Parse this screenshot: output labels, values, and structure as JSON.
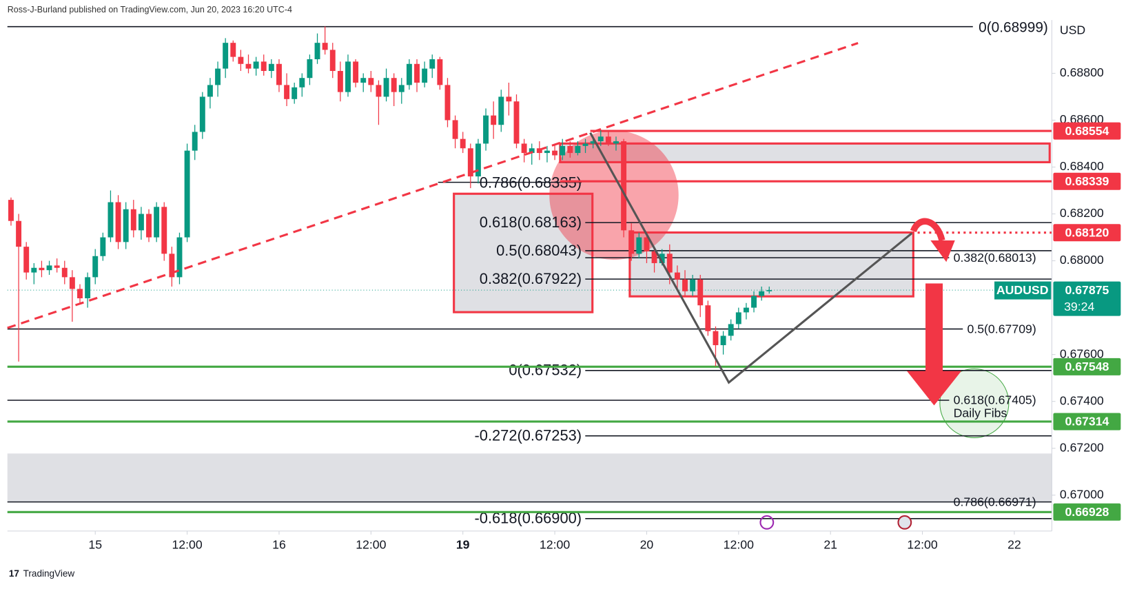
{
  "header": "Ross-J-Burland published on TradingView.com, Jun 20, 2023 16:20 UTC-4",
  "footer": "TradingView",
  "chart_data": {
    "type": "candlestick",
    "symbol": "AUDUSD",
    "currency": "USD",
    "countdown": "39:24",
    "up_color": "#089981",
    "down_color": "#f23645",
    "ylim": [
      0.66847,
      0.69027
    ],
    "xlim": [
      -0.47,
      135.9
    ],
    "yticks": [
      {
        "value": 0.688,
        "label": "0.68800"
      },
      {
        "value": 0.686,
        "label": "0.68600"
      },
      {
        "value": 0.684,
        "label": "0.68400"
      },
      {
        "value": 0.682,
        "label": "0.68200"
      },
      {
        "value": 0.68,
        "label": "0.68000"
      },
      {
        "value": 0.676,
        "label": "0.67600"
      },
      {
        "value": 0.674,
        "label": "0.67400"
      },
      {
        "value": 0.672,
        "label": "0.67200"
      },
      {
        "value": 0.67,
        "label": "0.67000"
      }
    ],
    "xticks": [
      {
        "value": 11,
        "label": "15"
      },
      {
        "value": 23,
        "label": "12:00"
      },
      {
        "value": 35,
        "label": "16"
      },
      {
        "value": 47,
        "label": "12:00"
      },
      {
        "value": 59,
        "label": "19"
      },
      {
        "value": 71,
        "label": "12:00"
      },
      {
        "value": 83,
        "label": "20"
      },
      {
        "value": 95,
        "label": "12:00"
      },
      {
        "value": 107,
        "label": "21"
      },
      {
        "value": 119,
        "label": "12:00"
      },
      {
        "value": 131,
        "label": "22"
      }
    ],
    "candles": [
      [
        0.6826,
        0.6827,
        0.6815,
        0.6817
      ],
      [
        0.6817,
        0.682,
        0.6757,
        0.6806
      ],
      [
        0.6806,
        0.6808,
        0.6792,
        0.6795
      ],
      [
        0.6795,
        0.6799,
        0.679,
        0.6797
      ],
      [
        0.6797,
        0.68,
        0.6793,
        0.6796
      ],
      [
        0.6796,
        0.68,
        0.6794,
        0.6798
      ],
      [
        0.6798,
        0.6801,
        0.6795,
        0.6797
      ],
      [
        0.6797,
        0.68,
        0.679,
        0.6793
      ],
      [
        0.6793,
        0.6796,
        0.6774,
        0.6788
      ],
      [
        0.6788,
        0.679,
        0.6782,
        0.6784
      ],
      [
        0.6784,
        0.6795,
        0.678,
        0.6793
      ],
      [
        0.6793,
        0.6805,
        0.679,
        0.6802
      ],
      [
        0.6802,
        0.6812,
        0.68,
        0.681
      ],
      [
        0.681,
        0.683,
        0.6808,
        0.6825
      ],
      [
        0.6825,
        0.6828,
        0.6805,
        0.6808
      ],
      [
        0.6808,
        0.6825,
        0.6805,
        0.6822
      ],
      [
        0.6822,
        0.6826,
        0.681,
        0.6813
      ],
      [
        0.6813,
        0.6823,
        0.6809,
        0.682
      ],
      [
        0.682,
        0.6822,
        0.6808,
        0.681
      ],
      [
        0.681,
        0.6825,
        0.6808,
        0.6823
      ],
      [
        0.6823,
        0.6825,
        0.68,
        0.6803
      ],
      [
        0.6803,
        0.6806,
        0.6789,
        0.6793
      ],
      [
        0.6793,
        0.6812,
        0.679,
        0.681
      ],
      [
        0.681,
        0.685,
        0.6808,
        0.6847
      ],
      [
        0.6847,
        0.6858,
        0.6843,
        0.6855
      ],
      [
        0.6855,
        0.6872,
        0.6852,
        0.687
      ],
      [
        0.687,
        0.6878,
        0.6865,
        0.6875
      ],
      [
        0.6875,
        0.6885,
        0.687,
        0.6882
      ],
      [
        0.6882,
        0.6895,
        0.6878,
        0.6893
      ],
      [
        0.6893,
        0.6894,
        0.6885,
        0.6887
      ],
      [
        0.6887,
        0.689,
        0.6881,
        0.6884
      ],
      [
        0.6884,
        0.6888,
        0.688,
        0.6882
      ],
      [
        0.6882,
        0.6887,
        0.6879,
        0.6885
      ],
      [
        0.6885,
        0.6888,
        0.6879,
        0.6881
      ],
      [
        0.6881,
        0.6886,
        0.6878,
        0.6884
      ],
      [
        0.6884,
        0.6886,
        0.6872,
        0.6875
      ],
      [
        0.6875,
        0.688,
        0.6866,
        0.6869
      ],
      [
        0.6869,
        0.6876,
        0.6867,
        0.6874
      ],
      [
        0.6874,
        0.688,
        0.687,
        0.6878
      ],
      [
        0.6878,
        0.6888,
        0.6875,
        0.6886
      ],
      [
        0.6886,
        0.6897,
        0.6884,
        0.6893
      ],
      [
        0.6893,
        0.69,
        0.6888,
        0.689
      ],
      [
        0.689,
        0.6893,
        0.6878,
        0.6881
      ],
      [
        0.6881,
        0.6885,
        0.6868,
        0.6872
      ],
      [
        0.6872,
        0.6888,
        0.687,
        0.6885
      ],
      [
        0.6885,
        0.6886,
        0.6874,
        0.6876
      ],
      [
        0.6876,
        0.688,
        0.6872,
        0.6878
      ],
      [
        0.6878,
        0.6881,
        0.6872,
        0.6875
      ],
      [
        0.6875,
        0.6877,
        0.6858,
        0.687
      ],
      [
        0.687,
        0.6882,
        0.6868,
        0.6878
      ],
      [
        0.6878,
        0.688,
        0.6866,
        0.6872
      ],
      [
        0.6872,
        0.6878,
        0.6867,
        0.6875
      ],
      [
        0.6875,
        0.6886,
        0.6873,
        0.6884
      ],
      [
        0.6884,
        0.6886,
        0.6872,
        0.6876
      ],
      [
        0.6876,
        0.6885,
        0.6874,
        0.6882
      ],
      [
        0.6882,
        0.6888,
        0.6878,
        0.6886
      ],
      [
        0.6886,
        0.6887,
        0.6873,
        0.6875
      ],
      [
        0.6875,
        0.6878,
        0.6857,
        0.686
      ],
      [
        0.686,
        0.6862,
        0.6848,
        0.6852
      ],
      [
        0.6852,
        0.6855,
        0.6846,
        0.6848
      ],
      [
        0.6848,
        0.685,
        0.6831,
        0.6836
      ],
      [
        0.6836,
        0.6852,
        0.6833,
        0.685
      ],
      [
        0.685,
        0.6865,
        0.6847,
        0.6862
      ],
      [
        0.6862,
        0.6868,
        0.6852,
        0.6858
      ],
      [
        0.6858,
        0.6873,
        0.6855,
        0.687
      ],
      [
        0.687,
        0.6876,
        0.6862,
        0.6868
      ],
      [
        0.6868,
        0.6871,
        0.6848,
        0.685
      ],
      [
        0.685,
        0.6852,
        0.6842,
        0.6846
      ],
      [
        0.6846,
        0.685,
        0.6841,
        0.6848
      ],
      [
        0.6848,
        0.6851,
        0.6843,
        0.6846
      ],
      [
        0.6846,
        0.6849,
        0.6842,
        0.6847
      ],
      [
        0.6847,
        0.685,
        0.6843,
        0.6845
      ],
      [
        0.6845,
        0.6852,
        0.6843,
        0.6849
      ],
      [
        0.6849,
        0.6851,
        0.6844,
        0.6846
      ],
      [
        0.6846,
        0.6851,
        0.6845,
        0.6849
      ],
      [
        0.6849,
        0.6852,
        0.6846,
        0.685
      ],
      [
        0.685,
        0.6853,
        0.6848,
        0.6851
      ],
      [
        0.6851,
        0.6856,
        0.6849,
        0.6853
      ],
      [
        0.6853,
        0.6855,
        0.6849,
        0.685
      ],
      [
        0.685,
        0.6853,
        0.6847,
        0.6851
      ],
      [
        0.6851,
        0.6852,
        0.681,
        0.6813
      ],
      [
        0.6813,
        0.6816,
        0.68,
        0.6803
      ],
      [
        0.6803,
        0.6812,
        0.6801,
        0.681
      ],
      [
        0.681,
        0.6811,
        0.6799,
        0.6804
      ],
      [
        0.6804,
        0.6806,
        0.6795,
        0.6799
      ],
      [
        0.6799,
        0.6805,
        0.6798,
        0.6803
      ],
      [
        0.6803,
        0.6807,
        0.679,
        0.6795
      ],
      [
        0.6795,
        0.6798,
        0.6788,
        0.6792
      ],
      [
        0.6792,
        0.6796,
        0.6785,
        0.6787
      ],
      [
        0.6787,
        0.6794,
        0.6785,
        0.6792
      ],
      [
        0.6792,
        0.6794,
        0.6776,
        0.6781
      ],
      [
        0.6781,
        0.6783,
        0.6768,
        0.677
      ],
      [
        0.677,
        0.6772,
        0.6755,
        0.6764
      ],
      [
        0.6764,
        0.677,
        0.676,
        0.6768
      ],
      [
        0.6768,
        0.6775,
        0.6766,
        0.6773
      ],
      [
        0.6773,
        0.678,
        0.6771,
        0.6778
      ],
      [
        0.6778,
        0.6782,
        0.6775,
        0.678
      ],
      [
        0.678,
        0.6787,
        0.6778,
        0.6785
      ],
      [
        0.6785,
        0.6789,
        0.6783,
        0.6787
      ],
      [
        0.6787,
        0.6789,
        0.6786,
        0.67875
      ]
    ],
    "last_price": 0.67875,
    "price_tags": [
      {
        "value": 0.68554,
        "color": "#f23645"
      },
      {
        "value": 0.68339,
        "color": "#f23645"
      },
      {
        "value": 0.6812,
        "label": "0.68120",
        "color": "#f23645"
      },
      {
        "value": 0.67548,
        "color": "#43a843"
      },
      {
        "value": 0.67314,
        "color": "#43a843"
      },
      {
        "value": 0.66928,
        "color": "#43a843"
      }
    ],
    "fib_left": [
      {
        "label": "0(0.68999)",
        "value": 0.68999
      },
      {
        "label": "0.786(0.68335)",
        "value": 0.68335
      },
      {
        "label": "0.618(0.68163)",
        "value": 0.68163
      },
      {
        "label": "0.5(0.68043)",
        "value": 0.68043
      },
      {
        "label": "0.382(0.67922)",
        "value": 0.67922
      },
      {
        "label": "0(0.67532)",
        "value": 0.67532
      },
      {
        "label": "-0.272(0.67253)",
        "value": 0.67253
      },
      {
        "label": "-0.618(0.66900)",
        "value": 0.669
      }
    ],
    "fib_right": [
      {
        "label": "0.382(0.68013)",
        "value": 0.68013
      },
      {
        "label": "0.5(0.67709)",
        "value": 0.67709
      },
      {
        "label": "0.618(0.67405)",
        "value": 0.67405
      },
      {
        "label": "0.786(0.66971)",
        "value": 0.66971
      }
    ],
    "fib_right_note": "Daily  Fibs"
  }
}
